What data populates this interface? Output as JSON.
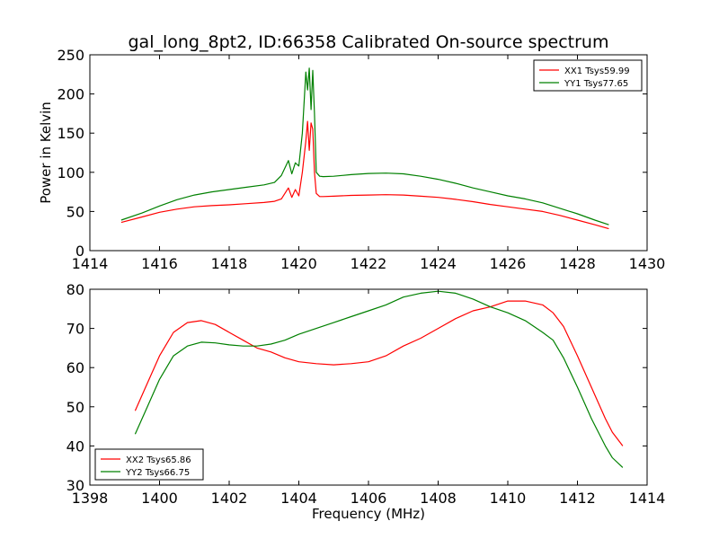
{
  "title": "gal_long_8pt2, ID:66358 Calibrated On-source spectrum",
  "chart_data": [
    {
      "type": "line",
      "title": "gal_long_8pt2, ID:66358 Calibrated On-source spectrum",
      "xlabel": "",
      "ylabel": "Power in Kelvin",
      "xlim": [
        1414,
        1430
      ],
      "ylim": [
        0,
        250
      ],
      "xticks": [
        1414,
        1416,
        1418,
        1420,
        1422,
        1424,
        1426,
        1428,
        1430
      ],
      "yticks": [
        0,
        50,
        100,
        150,
        200,
        250
      ],
      "grid": false,
      "legend_position": "top-right",
      "series": [
        {
          "name": "XX1 Tsys59.99",
          "color": "#ff0000",
          "x": [
            1414.9,
            1415.5,
            1416.0,
            1416.5,
            1417.0,
            1417.5,
            1418.0,
            1418.5,
            1419.0,
            1419.3,
            1419.5,
            1419.7,
            1419.8,
            1419.9,
            1420.0,
            1420.1,
            1420.2,
            1420.25,
            1420.3,
            1420.35,
            1420.4,
            1420.45,
            1420.5,
            1420.6,
            1420.7,
            1421.0,
            1421.5,
            1422.0,
            1422.5,
            1423.0,
            1423.5,
            1424.0,
            1424.5,
            1425.0,
            1425.5,
            1426.0,
            1426.5,
            1427.0,
            1427.5,
            1428.0,
            1428.5,
            1428.9
          ],
          "y": [
            36,
            43,
            49,
            53,
            56,
            57.5,
            58.5,
            60,
            61.5,
            63,
            66,
            80,
            68,
            78,
            70,
            100,
            140,
            165,
            128,
            163,
            155,
            100,
            73,
            69,
            69,
            69.5,
            70.5,
            71,
            71.5,
            71,
            69.5,
            68,
            65.5,
            62.5,
            59,
            56,
            53,
            50,
            45,
            39,
            33,
            28
          ]
        },
        {
          "name": "YY1 Tsys77.65",
          "color": "#008000",
          "x": [
            1414.9,
            1415.5,
            1416.0,
            1416.5,
            1417.0,
            1417.5,
            1418.0,
            1418.5,
            1419.0,
            1419.3,
            1419.5,
            1419.7,
            1419.8,
            1419.9,
            1420.0,
            1420.1,
            1420.2,
            1420.25,
            1420.3,
            1420.35,
            1420.4,
            1420.45,
            1420.5,
            1420.6,
            1420.7,
            1421.0,
            1421.5,
            1422.0,
            1422.5,
            1423.0,
            1423.5,
            1424.0,
            1424.5,
            1425.0,
            1425.5,
            1426.0,
            1426.5,
            1427.0,
            1427.5,
            1428.0,
            1428.5,
            1428.9
          ],
          "y": [
            39,
            48,
            57,
            65,
            71,
            75,
            78,
            81,
            84,
            87,
            96,
            115,
            98,
            112,
            108,
            150,
            228,
            205,
            233,
            180,
            230,
            175,
            100,
            95,
            94.5,
            95,
            97,
            98.5,
            99,
            98,
            95,
            91,
            86,
            80,
            75,
            70,
            66,
            61,
            54,
            47,
            39,
            33
          ]
        }
      ]
    },
    {
      "type": "line",
      "title": "",
      "xlabel": "Frequency (MHz)",
      "ylabel": "",
      "xlim": [
        1398,
        1414
      ],
      "ylim": [
        30,
        80
      ],
      "xticks": [
        1398,
        1400,
        1402,
        1404,
        1406,
        1408,
        1410,
        1412,
        1414
      ],
      "yticks": [
        30,
        40,
        50,
        60,
        70,
        80
      ],
      "grid": false,
      "legend_position": "bottom-left",
      "series": [
        {
          "name": "XX2 Tsys65.86",
          "color": "#ff0000",
          "x": [
            1399.3,
            1399.6,
            1400.0,
            1400.4,
            1400.8,
            1401.2,
            1401.6,
            1402.0,
            1402.4,
            1402.8,
            1403.2,
            1403.6,
            1404.0,
            1404.5,
            1405.0,
            1405.5,
            1406.0,
            1406.5,
            1407.0,
            1407.5,
            1408.0,
            1408.5,
            1409.0,
            1409.5,
            1410.0,
            1410.5,
            1411.0,
            1411.3,
            1411.6,
            1412.0,
            1412.4,
            1412.8,
            1413.0,
            1413.3
          ],
          "y": [
            49,
            55,
            63,
            69,
            71.5,
            72,
            71,
            69,
            67,
            65,
            64,
            62.5,
            61.5,
            61,
            60.7,
            61,
            61.5,
            63,
            65.5,
            67.5,
            70,
            72.5,
            74.5,
            75.5,
            77,
            77,
            76,
            74,
            70.5,
            63,
            55,
            47,
            43.5,
            40
          ]
        },
        {
          "name": "YY2 Tsys66.75",
          "color": "#008000",
          "x": [
            1399.3,
            1399.6,
            1400.0,
            1400.4,
            1400.8,
            1401.2,
            1401.6,
            1402.0,
            1402.4,
            1402.8,
            1403.2,
            1403.6,
            1404.0,
            1404.5,
            1405.0,
            1405.5,
            1406.0,
            1406.5,
            1407.0,
            1407.5,
            1408.0,
            1408.5,
            1409.0,
            1409.5,
            1410.0,
            1410.5,
            1411.0,
            1411.3,
            1411.6,
            1412.0,
            1412.4,
            1412.8,
            1413.0,
            1413.3
          ],
          "y": [
            43,
            49,
            57,
            63,
            65.5,
            66.5,
            66.3,
            65.8,
            65.5,
            65.5,
            66,
            67,
            68.5,
            70,
            71.5,
            73,
            74.5,
            76,
            78,
            79,
            79.5,
            79,
            77.5,
            75.5,
            74,
            72,
            69,
            67,
            62.5,
            55,
            47,
            40,
            37,
            34.5
          ]
        }
      ]
    }
  ]
}
